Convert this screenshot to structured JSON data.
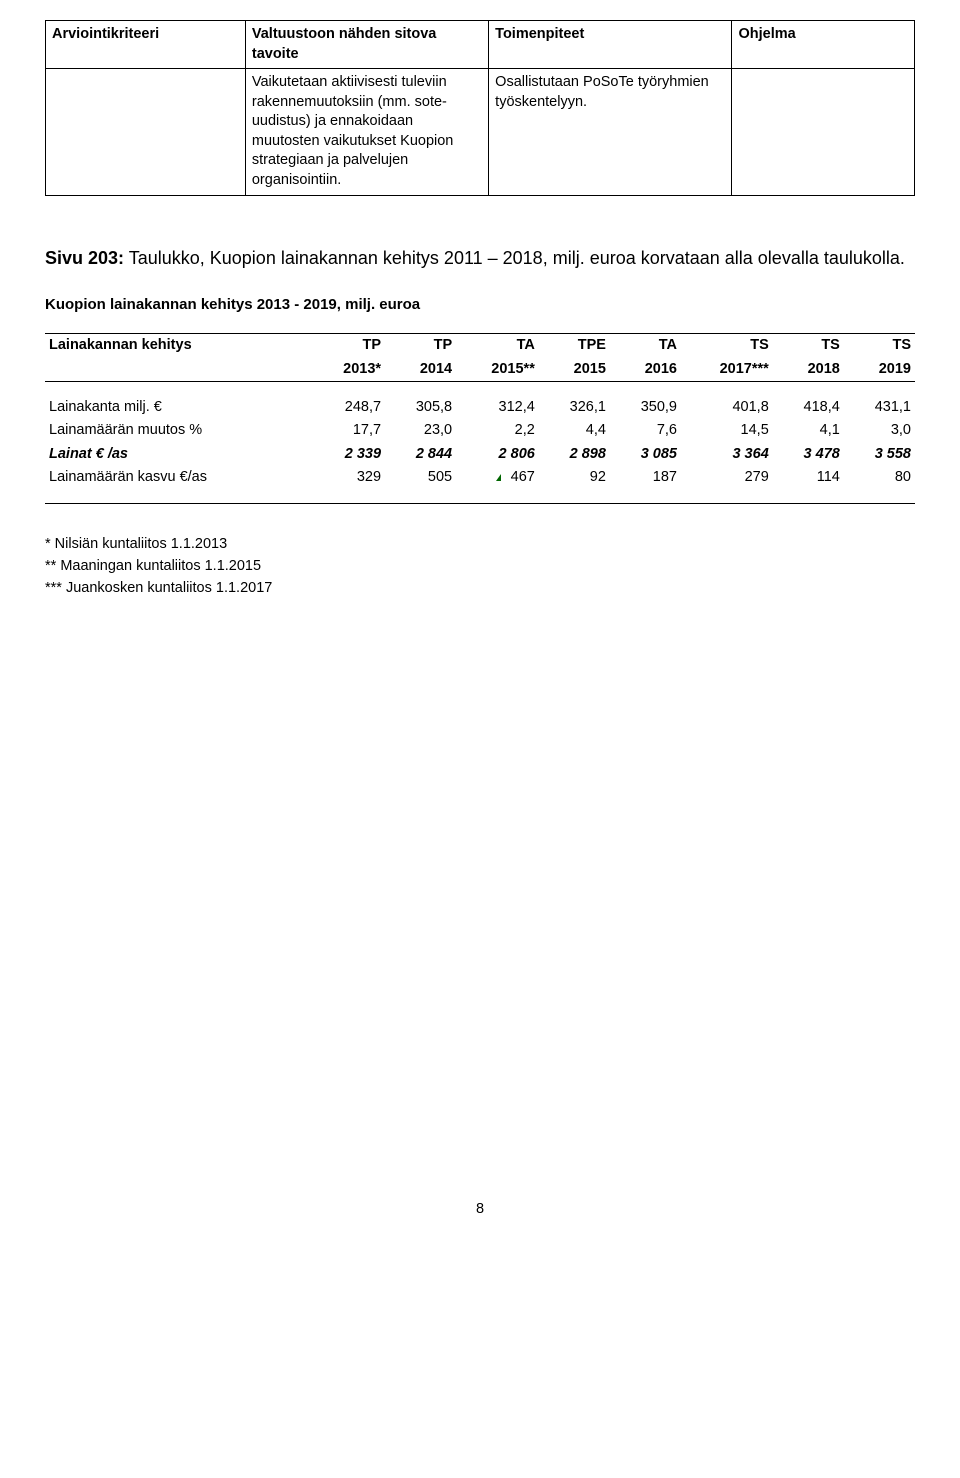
{
  "top_table": {
    "headers": [
      "Arviointikriteeri",
      "Valtuustoon nähden sitova tavoite",
      "Toimenpiteet",
      "Ohjelma"
    ],
    "row": {
      "c1": "",
      "c2": "Vaikutetaan aktiivisesti tuleviin rakennemuutoksiin (mm. sote-uudistus) ja ennakoidaan muutosten vaikutukset Kuopion strategiaan ja palvelujen organisointiin.",
      "c3": "Osallistutaan PoSoTe työryhmien työskentelyyn.",
      "c4": ""
    }
  },
  "para": {
    "lead": "Sivu 203:",
    "rest": " Taulukko, Kuopion lainakannan kehitys 2011 – 2018, milj. euroa korvataan alla olevalla taulukolla."
  },
  "section_title": "Kuopion lainakannan kehitys 2013 - 2019, milj. euroa",
  "data_table": {
    "header_top": [
      "Lainakannan kehitys",
      "TP",
      "TP",
      "TA",
      "TPE",
      "TA",
      "TS",
      "TS",
      "TS"
    ],
    "header_bot": [
      "",
      "2013*",
      "2014",
      "2015**",
      "2015",
      "2016",
      "2017***",
      "2018",
      "2019"
    ],
    "rows": [
      {
        "label": "Lainakanta milj. €",
        "v": [
          "248,7",
          "305,8",
          "312,4",
          "326,1",
          "350,9",
          "401,8",
          "418,4",
          "431,1"
        ],
        "italic": false
      },
      {
        "label": "Lainamäärän muutos %",
        "v": [
          "17,7",
          "23,0",
          "2,2",
          "4,4",
          "7,6",
          "14,5",
          "4,1",
          "3,0"
        ],
        "italic": false
      },
      {
        "label": "Lainat € /as",
        "v": [
          "2 339",
          "2 844",
          "2 806",
          "2 898",
          "3 085",
          "3 364",
          "3 478",
          "3 558"
        ],
        "italic": true
      },
      {
        "label": "Lainamäärän kasvu €/as",
        "v": [
          "329",
          "505",
          "467",
          "92",
          "187",
          "279",
          "114",
          "80"
        ],
        "italic": false,
        "tri": true
      }
    ]
  },
  "notes": [
    "*   Nilsiän  kuntaliitos 1.1.2013",
    "**  Maaningan kuntaliitos 1.1.2015",
    "*** Juankosken kuntaliitos 1.1.2017"
  ],
  "page_number": "8"
}
